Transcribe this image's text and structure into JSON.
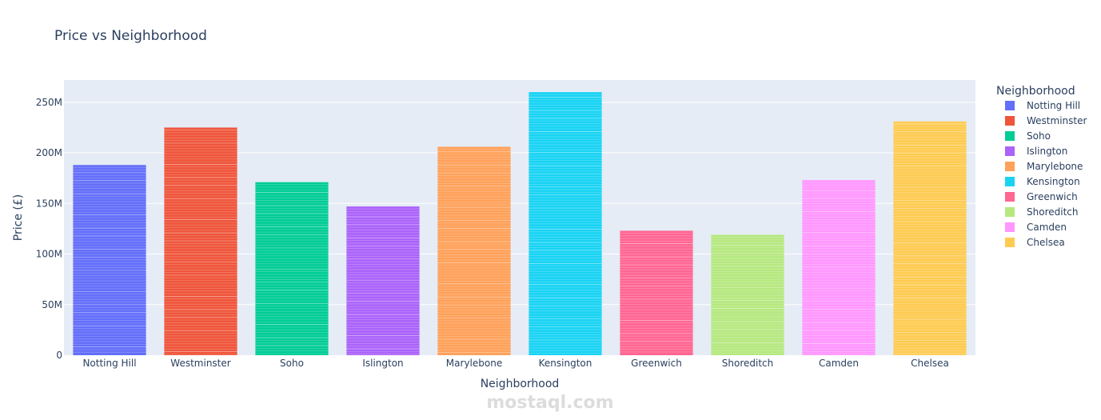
{
  "chart_data": {
    "type": "bar",
    "title": "Price vs Neighborhood",
    "xlabel": "Neighborhood",
    "ylabel": "Price (£)",
    "legend_title": "Neighborhood",
    "legend_placement": "right",
    "grid": true,
    "ylim": [
      0,
      272000000
    ],
    "yticks": [
      0,
      50000000,
      100000000,
      150000000,
      200000000,
      250000000
    ],
    "ytick_labels": [
      "0",
      "50M",
      "100M",
      "150M",
      "200M",
      "250M"
    ],
    "categories": [
      "Notting Hill",
      "Westminster",
      "Soho",
      "Islington",
      "Marylebone",
      "Kensington",
      "Greenwich",
      "Shoreditch",
      "Camden",
      "Chelsea"
    ],
    "values": [
      188000000,
      225000000,
      171000000,
      147000000,
      206000000,
      260000000,
      123000000,
      119000000,
      173000000,
      231000000
    ],
    "colors": [
      "#636efa",
      "#ef553b",
      "#00cc96",
      "#ab63fa",
      "#ffa15a",
      "#19d3f3",
      "#ff6692",
      "#b6e880",
      "#ff97ff",
      "#fecb52"
    ]
  },
  "watermark": {
    "text": "mostaql.com"
  }
}
